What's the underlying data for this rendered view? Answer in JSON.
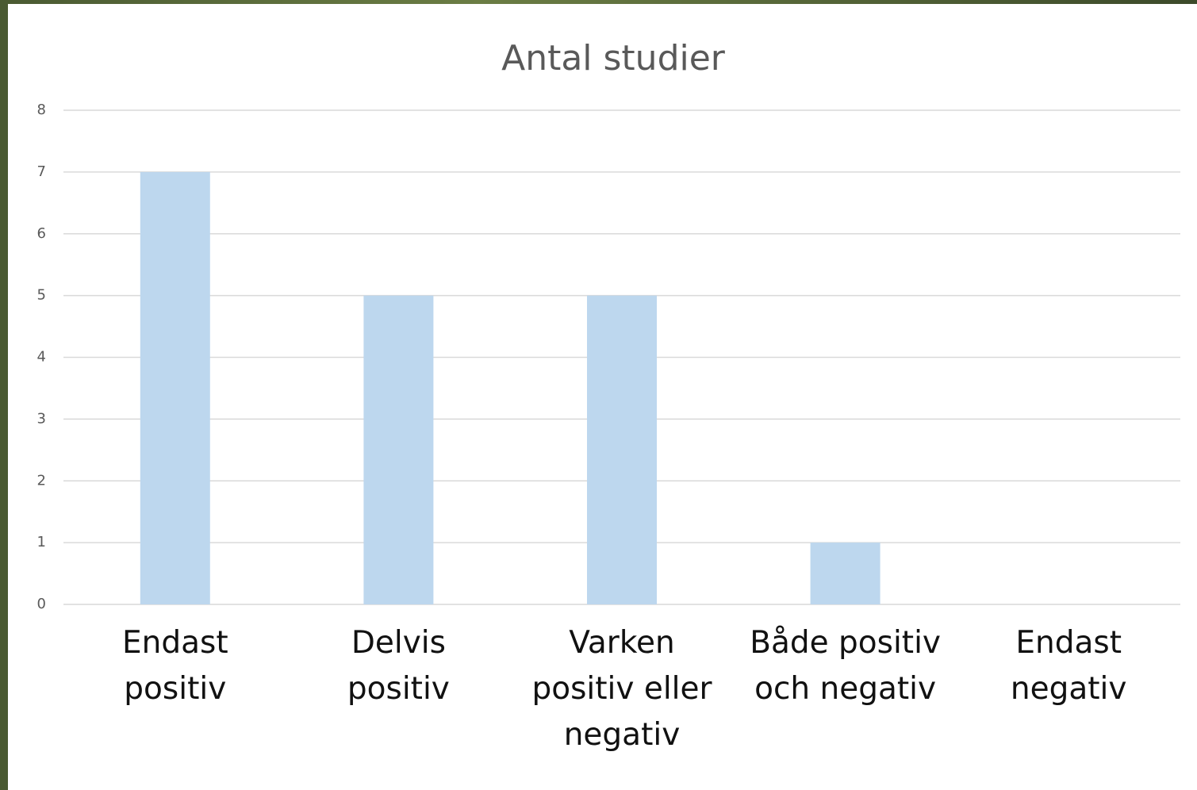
{
  "chart_data": {
    "type": "bar",
    "title": "Antal studier",
    "categories": [
      "Endast positiv",
      "Delvis positiv",
      "Varken positiv eller negativ",
      "Både positiv och negativ",
      "Endast negativ"
    ],
    "values": [
      7,
      5,
      5,
      1,
      0
    ],
    "color": "#bdd7ee",
    "ylim": [
      0,
      8
    ],
    "yticks": [
      0,
      1,
      2,
      3,
      4,
      5,
      6,
      7,
      8
    ],
    "grid": true
  }
}
